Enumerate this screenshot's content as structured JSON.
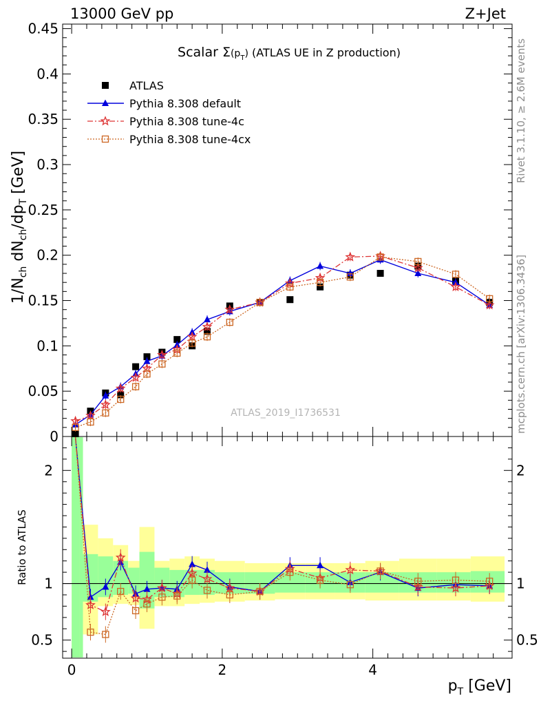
{
  "header": {
    "left_label": "13000 GeV pp",
    "right_label": "Z+Jet"
  },
  "plot_title": {
    "prefix": "Scalar ",
    "sigma": "Σ",
    "paren_open": "(p",
    "sub_T": "T",
    "paren_close": ")",
    "suffix": " (ATLAS UE in Z production)"
  },
  "side_labels": {
    "rivet": "Rivet 3.1.10, ≥ 2.6M events",
    "mcplots": "mcplots.cern.ch [arXiv:1306.3436]"
  },
  "watermark": "ATLAS_2019_I1736531",
  "y_label_main": {
    "part1": "1/N",
    "sub_ch1": "ch",
    "part2": " dN",
    "sub_ch2": "ch",
    "part3": "/dp",
    "sub_T": "T",
    "unit": " [GeV]"
  },
  "y_label_ratio": "Ratio to ATLAS",
  "x_label": {
    "p": "p",
    "sub_T": "T",
    "unit": " [GeV]"
  },
  "colors": {
    "atlas": "#000000",
    "default": "#0000dd",
    "tune4c": "#dd3333",
    "tune4cx": "#cc6622",
    "band_green": "#99ff99",
    "band_yellow": "#ffff99"
  },
  "legend": [
    {
      "key": "atlas",
      "label": "ATLAS"
    },
    {
      "key": "default",
      "label": "Pythia 8.308 default"
    },
    {
      "key": "tune4c",
      "label": "Pythia 8.308 tune-4c"
    },
    {
      "key": "tune4cx",
      "label": "Pythia 8.308 tune-4cx"
    }
  ],
  "chart_data": {
    "type": "scatter",
    "x": [
      0.05,
      0.25,
      0.45,
      0.65,
      0.85,
      1.0,
      1.2,
      1.4,
      1.6,
      1.8,
      2.1,
      2.5,
      2.9,
      3.3,
      3.7,
      4.1,
      4.6,
      5.1,
      5.55
    ],
    "main": {
      "xlim": [
        -0.12,
        5.85
      ],
      "ylim": [
        0,
        0.455
      ],
      "x_ticks": [
        "0",
        "2",
        "4"
      ],
      "y_ticks": [
        "0",
        "0.05",
        "0.1",
        "0.15",
        "0.2",
        "0.25",
        "0.3",
        "0.35",
        "0.4",
        "0.45"
      ],
      "series": [
        {
          "name": "ATLAS",
          "key": "atlas",
          "values": [
            0.003,
            0.028,
            0.048,
            0.046,
            0.077,
            0.088,
            0.093,
            0.107,
            0.1,
            0.116,
            0.144,
            0.148,
            0.151,
            0.165,
            0.178,
            0.18,
            0.188,
            0.172,
            0.148
          ]
        },
        {
          "name": "Pythia 8.308 default",
          "key": "default",
          "values": [
            0.013,
            0.024,
            0.045,
            0.055,
            0.069,
            0.083,
            0.089,
            0.101,
            0.115,
            0.129,
            0.138,
            0.148,
            0.172,
            0.188,
            0.18,
            0.195,
            0.18,
            0.17,
            0.145
          ]
        },
        {
          "name": "Pythia 8.308 tune-4c",
          "key": "tune4c",
          "values": [
            0.017,
            0.023,
            0.035,
            0.053,
            0.065,
            0.075,
            0.09,
            0.096,
            0.11,
            0.121,
            0.14,
            0.148,
            0.169,
            0.175,
            0.198,
            0.199,
            0.186,
            0.165,
            0.145
          ]
        },
        {
          "name": "Pythia 8.308 tune-4cx",
          "key": "tune4cx",
          "values": [
            0.01,
            0.016,
            0.026,
            0.041,
            0.055,
            0.069,
            0.08,
            0.092,
            0.103,
            0.11,
            0.126,
            0.148,
            0.165,
            0.17,
            0.176,
            0.198,
            0.193,
            0.179,
            0.152
          ]
        }
      ]
    },
    "ratio": {
      "xlim": [
        -0.12,
        5.85
      ],
      "ylim": [
        0.34,
        2.3
      ],
      "y_ticks": [
        "0.5",
        "1",
        "2"
      ],
      "series": [
        {
          "name": "Pythia 8.308 default",
          "key": "default",
          "values": [
            2.4,
            0.88,
            0.97,
            1.19,
            0.91,
            0.95,
            0.96,
            0.95,
            1.17,
            1.12,
            0.97,
            0.93,
            1.16,
            1.16,
            1.01,
            1.1,
            0.96,
            0.99,
            0.98
          ]
        },
        {
          "name": "Pythia 8.308 tune-4c",
          "key": "tune4c",
          "values": [
            2.4,
            0.81,
            0.75,
            1.23,
            0.87,
            0.86,
            0.96,
            0.91,
            1.09,
            1.04,
            0.96,
            0.93,
            1.13,
            1.05,
            1.12,
            1.11,
            0.97,
            0.96,
            0.98
          ]
        },
        {
          "name": "Pythia 8.308 tune-4cx",
          "key": "tune4cx",
          "values": [
            2.4,
            0.57,
            0.55,
            0.93,
            0.76,
            0.82,
            0.88,
            0.89,
            1.03,
            0.94,
            0.9,
            0.93,
            1.1,
            1.03,
            0.99,
            1.11,
            1.02,
            1.03,
            1.02
          ]
        }
      ],
      "bands": [
        {
          "x0": 0.0,
          "x1": 0.1,
          "green": [
            0.25,
            2.3
          ],
          "yellow": [
            0.25,
            2.3
          ]
        },
        {
          "x0": 0.1,
          "x1": 0.15,
          "green": [
            0.25,
            2.3
          ],
          "yellow": [
            0.25,
            2.3
          ]
        },
        {
          "x0": 0.15,
          "x1": 0.35,
          "green": [
            0.84,
            1.26
          ],
          "yellow": [
            0.55,
            1.52
          ]
        },
        {
          "x0": 0.35,
          "x1": 0.55,
          "green": [
            0.88,
            1.24
          ],
          "yellow": [
            0.8,
            1.4
          ]
        },
        {
          "x0": 0.55,
          "x1": 0.75,
          "green": [
            0.9,
            1.2
          ],
          "yellow": [
            0.82,
            1.34
          ]
        },
        {
          "x0": 0.75,
          "x1": 0.9,
          "green": [
            0.91,
            1.14
          ],
          "yellow": [
            0.81,
            1.2
          ]
        },
        {
          "x0": 0.9,
          "x1": 1.1,
          "green": [
            0.78,
            1.28
          ],
          "yellow": [
            0.6,
            1.5
          ]
        },
        {
          "x0": 1.1,
          "x1": 1.3,
          "green": [
            0.88,
            1.14
          ],
          "yellow": [
            0.8,
            1.2
          ]
        },
        {
          "x0": 1.3,
          "x1": 1.5,
          "green": [
            0.88,
            1.12
          ],
          "yellow": [
            0.8,
            1.22
          ]
        },
        {
          "x0": 1.5,
          "x1": 1.7,
          "green": [
            0.9,
            1.12
          ],
          "yellow": [
            0.82,
            1.24
          ]
        },
        {
          "x0": 1.7,
          "x1": 1.9,
          "green": [
            0.9,
            1.12
          ],
          "yellow": [
            0.83,
            1.22
          ]
        },
        {
          "x0": 1.9,
          "x1": 2.3,
          "green": [
            0.91,
            1.1
          ],
          "yellow": [
            0.84,
            1.2
          ]
        },
        {
          "x0": 2.3,
          "x1": 2.7,
          "green": [
            0.91,
            1.1
          ],
          "yellow": [
            0.85,
            1.18
          ]
        },
        {
          "x0": 2.7,
          "x1": 3.1,
          "green": [
            0.92,
            1.1
          ],
          "yellow": [
            0.86,
            1.18
          ]
        },
        {
          "x0": 3.1,
          "x1": 3.5,
          "green": [
            0.92,
            1.1
          ],
          "yellow": [
            0.86,
            1.18
          ]
        },
        {
          "x0": 3.5,
          "x1": 3.9,
          "green": [
            0.92,
            1.1
          ],
          "yellow": [
            0.86,
            1.18
          ]
        },
        {
          "x0": 3.9,
          "x1": 4.35,
          "green": [
            0.92,
            1.1
          ],
          "yellow": [
            0.85,
            1.2
          ]
        },
        {
          "x0": 4.35,
          "x1": 4.85,
          "green": [
            0.92,
            1.1
          ],
          "yellow": [
            0.85,
            1.22
          ]
        },
        {
          "x0": 4.85,
          "x1": 5.3,
          "green": [
            0.92,
            1.1
          ],
          "yellow": [
            0.85,
            1.22
          ]
        },
        {
          "x0": 5.3,
          "x1": 5.75,
          "green": [
            0.92,
            1.11
          ],
          "yellow": [
            0.84,
            1.24
          ]
        }
      ]
    }
  }
}
